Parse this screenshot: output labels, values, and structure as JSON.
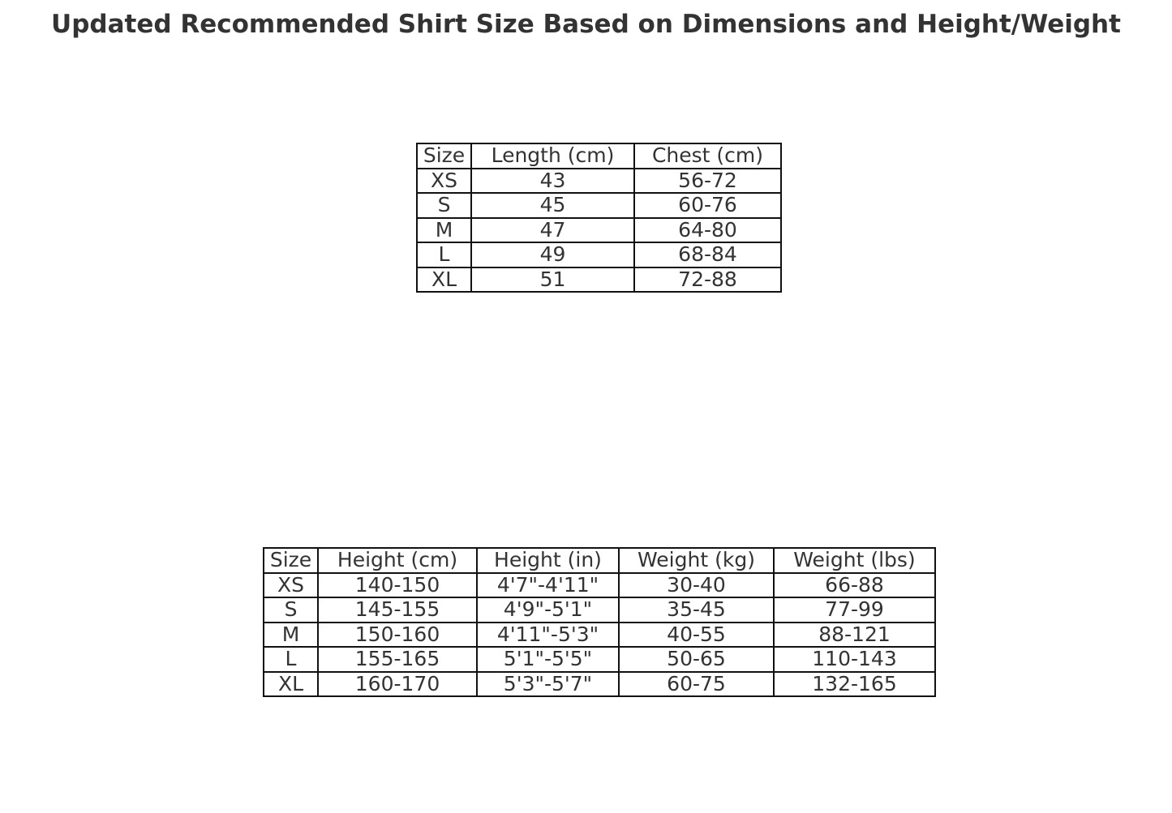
{
  "title": "Updated Recommended Shirt Size Based on Dimensions and Height/Weight",
  "chart_data": [
    {
      "type": "table",
      "columns": [
        "Size",
        "Length (cm)",
        "Chest (cm)"
      ],
      "rows": [
        [
          "XS",
          "43",
          "56-72"
        ],
        [
          "S",
          "45",
          "60-76"
        ],
        [
          "M",
          "47",
          "64-80"
        ],
        [
          "L",
          "49",
          "68-84"
        ],
        [
          "XL",
          "51",
          "72-88"
        ]
      ]
    },
    {
      "type": "table",
      "columns": [
        "Size",
        "Height (cm)",
        "Height (in)",
        "Weight (kg)",
        "Weight (lbs)"
      ],
      "rows": [
        [
          "XS",
          "140-150",
          "4'7\"-4'11\"",
          "30-40",
          "66-88"
        ],
        [
          "S",
          "145-155",
          "4'9\"-5'1\"",
          "35-45",
          "77-99"
        ],
        [
          "M",
          "150-160",
          "4'11\"-5'3\"",
          "40-55",
          "88-121"
        ],
        [
          "L",
          "155-165",
          "5'1\"-5'5\"",
          "50-65",
          "110-143"
        ],
        [
          "XL",
          "160-170",
          "5'3\"-5'7\"",
          "60-75",
          "132-165"
        ]
      ]
    }
  ]
}
